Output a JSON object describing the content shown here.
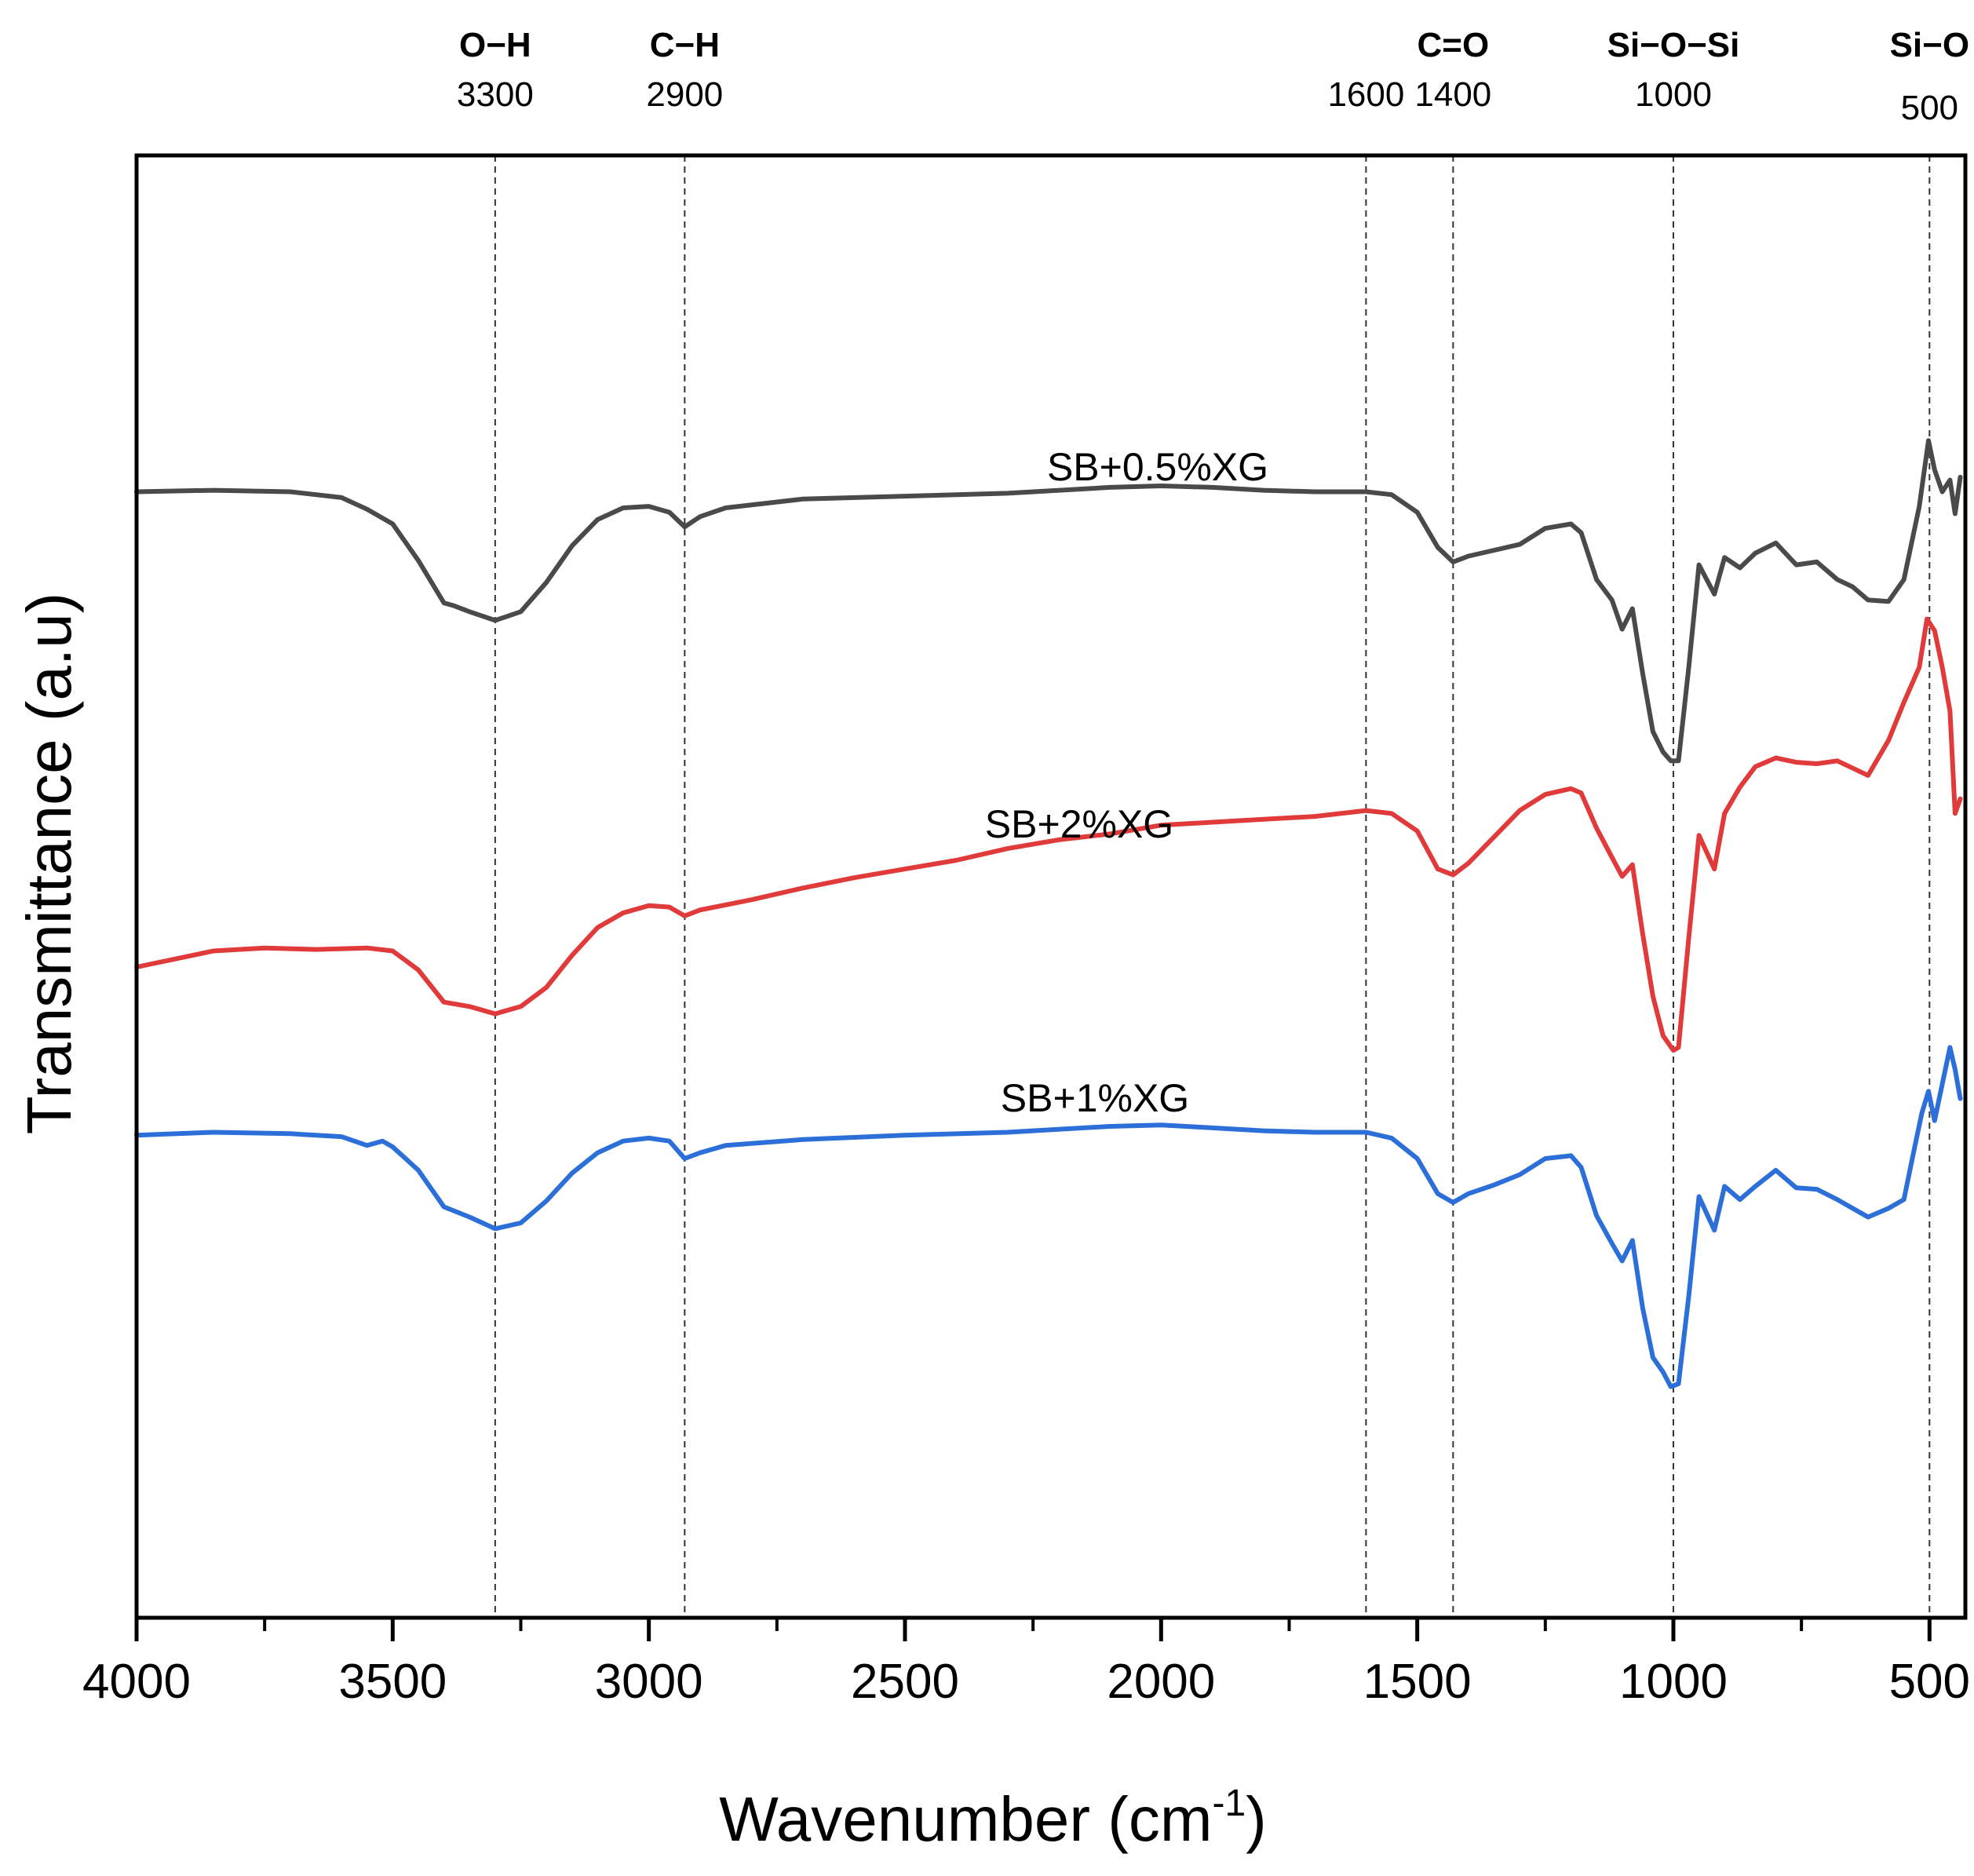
{
  "chart_data": {
    "type": "line",
    "title": "",
    "xlabel_main": "Wavenumber (cm",
    "xlabel_sup": "-1",
    "xlabel_end": ")",
    "ylabel": "Transmittance (a.u)",
    "xlim": [
      4000,
      430
    ],
    "ylim": [
      0,
      100
    ],
    "x_ticks": [
      "4000",
      "3500",
      "3000",
      "2500",
      "2000",
      "1500",
      "1000",
      "500"
    ],
    "x_tick_values": [
      4000,
      3500,
      3000,
      2500,
      2000,
      1500,
      1000,
      500
    ],
    "minor_tick_step": 250,
    "reference_lines": [
      {
        "name": "O−H",
        "value": "3300",
        "x": 3300
      },
      {
        "name": "C−H",
        "value": "2900",
        "x": 2930
      },
      {
        "name": "",
        "value": "1600",
        "x": 1600
      },
      {
        "name": "C=O",
        "value": "1400",
        "x": 1430
      },
      {
        "name": "Si−O−Si",
        "value": "1000",
        "x": 1000
      },
      {
        "name": "Si−O",
        "value": "500",
        "x": 500
      }
    ],
    "series": [
      {
        "name": "SB+0.5%XG",
        "color": "#4a4a4a",
        "points": [
          [
            4000,
            77
          ],
          [
            3850,
            77.1
          ],
          [
            3700,
            77
          ],
          [
            3600,
            76.6
          ],
          [
            3550,
            75.8
          ],
          [
            3500,
            74.8
          ],
          [
            3450,
            72.3
          ],
          [
            3400,
            69.4
          ],
          [
            3380,
            69.2
          ],
          [
            3350,
            68.8
          ],
          [
            3300,
            68.2
          ],
          [
            3250,
            68.8
          ],
          [
            3200,
            70.8
          ],
          [
            3150,
            73.3
          ],
          [
            3100,
            75.1
          ],
          [
            3050,
            75.9
          ],
          [
            3000,
            76.0
          ],
          [
            2960,
            75.6
          ],
          [
            2930,
            74.6
          ],
          [
            2900,
            75.3
          ],
          [
            2850,
            75.9
          ],
          [
            2700,
            76.5
          ],
          [
            2500,
            76.7
          ],
          [
            2300,
            76.9
          ],
          [
            2100,
            77.3
          ],
          [
            2000,
            77.4
          ],
          [
            1900,
            77.3
          ],
          [
            1800,
            77.1
          ],
          [
            1700,
            77.0
          ],
          [
            1600,
            77.0
          ],
          [
            1550,
            76.8
          ],
          [
            1500,
            75.6
          ],
          [
            1460,
            73.2
          ],
          [
            1430,
            72.2
          ],
          [
            1400,
            72.6
          ],
          [
            1350,
            73.0
          ],
          [
            1300,
            73.4
          ],
          [
            1250,
            74.5
          ],
          [
            1200,
            74.8
          ],
          [
            1180,
            74.2
          ],
          [
            1150,
            71.0
          ],
          [
            1120,
            69.6
          ],
          [
            1100,
            67.6
          ],
          [
            1080,
            69.0
          ],
          [
            1060,
            64.6
          ],
          [
            1040,
            60.6
          ],
          [
            1020,
            59.2
          ],
          [
            1005,
            58.6
          ],
          [
            990,
            58.6
          ],
          [
            970,
            65.0
          ],
          [
            950,
            72.0
          ],
          [
            920,
            70.0
          ],
          [
            900,
            72.5
          ],
          [
            870,
            71.8
          ],
          [
            840,
            72.8
          ],
          [
            800,
            73.5
          ],
          [
            760,
            72.0
          ],
          [
            720,
            72.2
          ],
          [
            680,
            71.0
          ],
          [
            650,
            70.5
          ],
          [
            620,
            69.6
          ],
          [
            580,
            69.5
          ],
          [
            550,
            71.0
          ],
          [
            520,
            76.0
          ],
          [
            502,
            80.5
          ],
          [
            490,
            78.5
          ],
          [
            475,
            77.0
          ],
          [
            460,
            77.8
          ],
          [
            450,
            75.5
          ],
          [
            440,
            78.0
          ]
        ]
      },
      {
        "name": "SB+2%XG",
        "color": "#e03a3a",
        "points": [
          [
            4000,
            44.5
          ],
          [
            3850,
            45.6
          ],
          [
            3750,
            45.8
          ],
          [
            3650,
            45.7
          ],
          [
            3550,
            45.8
          ],
          [
            3500,
            45.6
          ],
          [
            3450,
            44.3
          ],
          [
            3400,
            42.1
          ],
          [
            3350,
            41.8
          ],
          [
            3300,
            41.3
          ],
          [
            3250,
            41.8
          ],
          [
            3200,
            43.1
          ],
          [
            3150,
            45.3
          ],
          [
            3100,
            47.2
          ],
          [
            3050,
            48.2
          ],
          [
            3000,
            48.7
          ],
          [
            2960,
            48.6
          ],
          [
            2930,
            48.0
          ],
          [
            2900,
            48.4
          ],
          [
            2800,
            49.1
          ],
          [
            2700,
            49.9
          ],
          [
            2600,
            50.6
          ],
          [
            2500,
            51.2
          ],
          [
            2400,
            51.8
          ],
          [
            2300,
            52.6
          ],
          [
            2200,
            53.2
          ],
          [
            2100,
            53.6
          ],
          [
            2000,
            54.2
          ],
          [
            1900,
            54.4
          ],
          [
            1800,
            54.6
          ],
          [
            1700,
            54.8
          ],
          [
            1600,
            55.2
          ],
          [
            1550,
            55.0
          ],
          [
            1500,
            53.8
          ],
          [
            1460,
            51.2
          ],
          [
            1430,
            50.8
          ],
          [
            1400,
            51.6
          ],
          [
            1350,
            53.4
          ],
          [
            1300,
            55.2
          ],
          [
            1250,
            56.3
          ],
          [
            1200,
            56.7
          ],
          [
            1180,
            56.4
          ],
          [
            1150,
            54.0
          ],
          [
            1120,
            52.0
          ],
          [
            1100,
            50.7
          ],
          [
            1080,
            51.5
          ],
          [
            1060,
            46.8
          ],
          [
            1040,
            42.5
          ],
          [
            1020,
            39.8
          ],
          [
            1000,
            38.8
          ],
          [
            990,
            39.0
          ],
          [
            970,
            46.5
          ],
          [
            950,
            53.5
          ],
          [
            920,
            51.2
          ],
          [
            900,
            55.0
          ],
          [
            870,
            56.8
          ],
          [
            840,
            58.2
          ],
          [
            800,
            58.8
          ],
          [
            760,
            58.5
          ],
          [
            720,
            58.4
          ],
          [
            680,
            58.6
          ],
          [
            650,
            58.1
          ],
          [
            620,
            57.6
          ],
          [
            580,
            60.0
          ],
          [
            550,
            62.6
          ],
          [
            520,
            65.0
          ],
          [
            505,
            68.3
          ],
          [
            490,
            67.5
          ],
          [
            475,
            65.0
          ],
          [
            460,
            62.0
          ],
          [
            450,
            55.0
          ],
          [
            440,
            56.0
          ]
        ]
      },
      {
        "name": "SB+1%XG",
        "color": "#2c6fd8",
        "points": [
          [
            4000,
            33
          ],
          [
            3850,
            33.2
          ],
          [
            3700,
            33.1
          ],
          [
            3600,
            32.9
          ],
          [
            3550,
            32.3
          ],
          [
            3520,
            32.6
          ],
          [
            3500,
            32.2
          ],
          [
            3450,
            30.6
          ],
          [
            3400,
            28.1
          ],
          [
            3350,
            27.4
          ],
          [
            3300,
            26.6
          ],
          [
            3250,
            27.0
          ],
          [
            3200,
            28.5
          ],
          [
            3150,
            30.4
          ],
          [
            3100,
            31.8
          ],
          [
            3050,
            32.6
          ],
          [
            3000,
            32.8
          ],
          [
            2960,
            32.6
          ],
          [
            2930,
            31.4
          ],
          [
            2900,
            31.8
          ],
          [
            2850,
            32.3
          ],
          [
            2700,
            32.7
          ],
          [
            2500,
            33.0
          ],
          [
            2300,
            33.2
          ],
          [
            2100,
            33.6
          ],
          [
            2000,
            33.7
          ],
          [
            1900,
            33.5
          ],
          [
            1800,
            33.3
          ],
          [
            1700,
            33.2
          ],
          [
            1600,
            33.2
          ],
          [
            1550,
            32.8
          ],
          [
            1500,
            31.4
          ],
          [
            1460,
            29.0
          ],
          [
            1430,
            28.4
          ],
          [
            1400,
            29.0
          ],
          [
            1350,
            29.6
          ],
          [
            1300,
            30.3
          ],
          [
            1250,
            31.4
          ],
          [
            1200,
            31.6
          ],
          [
            1180,
            30.8
          ],
          [
            1150,
            27.5
          ],
          [
            1120,
            25.6
          ],
          [
            1100,
            24.4
          ],
          [
            1080,
            25.8
          ],
          [
            1060,
            21.2
          ],
          [
            1040,
            17.8
          ],
          [
            1020,
            16.8
          ],
          [
            1005,
            15.8
          ],
          [
            990,
            16.0
          ],
          [
            970,
            22.0
          ],
          [
            950,
            28.8
          ],
          [
            920,
            26.5
          ],
          [
            900,
            29.5
          ],
          [
            870,
            28.6
          ],
          [
            840,
            29.5
          ],
          [
            800,
            30.6
          ],
          [
            760,
            29.4
          ],
          [
            720,
            29.3
          ],
          [
            680,
            28.6
          ],
          [
            650,
            28.0
          ],
          [
            620,
            27.4
          ],
          [
            580,
            28.0
          ],
          [
            550,
            28.6
          ],
          [
            530,
            32.0
          ],
          [
            515,
            34.5
          ],
          [
            502,
            36.0
          ],
          [
            490,
            34.0
          ],
          [
            475,
            36.5
          ],
          [
            460,
            39.0
          ],
          [
            450,
            37.5
          ],
          [
            440,
            35.5
          ]
        ]
      }
    ]
  }
}
